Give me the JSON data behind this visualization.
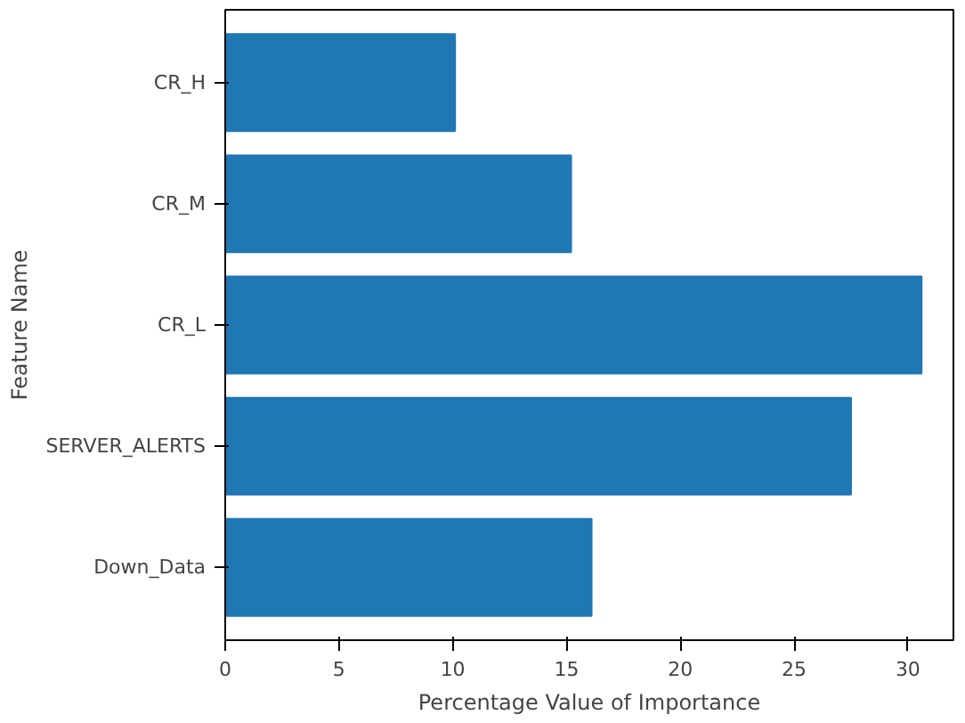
{
  "chart_data": {
    "type": "bar",
    "orientation": "horizontal",
    "xlabel": "Percentage Value of Importance",
    "ylabel": "Feature Name",
    "categories": [
      "CR_H",
      "CR_M",
      "CR_L",
      "SERVER_ALERTS",
      "Down_Data"
    ],
    "values": [
      10.1,
      15.2,
      30.6,
      27.5,
      16.1
    ],
    "color": "#1f77b4",
    "xlim": [
      0,
      32
    ],
    "xticks": [
      0,
      5,
      10,
      15,
      20,
      25,
      30
    ],
    "grid": false
  }
}
